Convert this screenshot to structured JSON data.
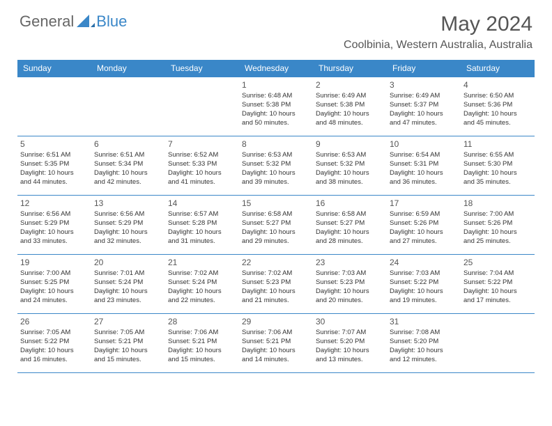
{
  "logo": {
    "text1": "General",
    "text2": "Blue"
  },
  "title": "May 2024",
  "location": "Coolbinia, Western Australia, Australia",
  "colors": {
    "header_bg": "#3a87c8",
    "header_text": "#ffffff",
    "border": "#3a87c8",
    "body_text": "#333333",
    "title_text": "#555555"
  },
  "weekdays": [
    "Sunday",
    "Monday",
    "Tuesday",
    "Wednesday",
    "Thursday",
    "Friday",
    "Saturday"
  ],
  "weeks": [
    [
      {
        "num": "",
        "sunrise": "",
        "sunset": "",
        "daylight1": "",
        "daylight2": ""
      },
      {
        "num": "",
        "sunrise": "",
        "sunset": "",
        "daylight1": "",
        "daylight2": ""
      },
      {
        "num": "",
        "sunrise": "",
        "sunset": "",
        "daylight1": "",
        "daylight2": ""
      },
      {
        "num": "1",
        "sunrise": "Sunrise: 6:48 AM",
        "sunset": "Sunset: 5:38 PM",
        "daylight1": "Daylight: 10 hours",
        "daylight2": "and 50 minutes."
      },
      {
        "num": "2",
        "sunrise": "Sunrise: 6:49 AM",
        "sunset": "Sunset: 5:38 PM",
        "daylight1": "Daylight: 10 hours",
        "daylight2": "and 48 minutes."
      },
      {
        "num": "3",
        "sunrise": "Sunrise: 6:49 AM",
        "sunset": "Sunset: 5:37 PM",
        "daylight1": "Daylight: 10 hours",
        "daylight2": "and 47 minutes."
      },
      {
        "num": "4",
        "sunrise": "Sunrise: 6:50 AM",
        "sunset": "Sunset: 5:36 PM",
        "daylight1": "Daylight: 10 hours",
        "daylight2": "and 45 minutes."
      }
    ],
    [
      {
        "num": "5",
        "sunrise": "Sunrise: 6:51 AM",
        "sunset": "Sunset: 5:35 PM",
        "daylight1": "Daylight: 10 hours",
        "daylight2": "and 44 minutes."
      },
      {
        "num": "6",
        "sunrise": "Sunrise: 6:51 AM",
        "sunset": "Sunset: 5:34 PM",
        "daylight1": "Daylight: 10 hours",
        "daylight2": "and 42 minutes."
      },
      {
        "num": "7",
        "sunrise": "Sunrise: 6:52 AM",
        "sunset": "Sunset: 5:33 PM",
        "daylight1": "Daylight: 10 hours",
        "daylight2": "and 41 minutes."
      },
      {
        "num": "8",
        "sunrise": "Sunrise: 6:53 AM",
        "sunset": "Sunset: 5:32 PM",
        "daylight1": "Daylight: 10 hours",
        "daylight2": "and 39 minutes."
      },
      {
        "num": "9",
        "sunrise": "Sunrise: 6:53 AM",
        "sunset": "Sunset: 5:32 PM",
        "daylight1": "Daylight: 10 hours",
        "daylight2": "and 38 minutes."
      },
      {
        "num": "10",
        "sunrise": "Sunrise: 6:54 AM",
        "sunset": "Sunset: 5:31 PM",
        "daylight1": "Daylight: 10 hours",
        "daylight2": "and 36 minutes."
      },
      {
        "num": "11",
        "sunrise": "Sunrise: 6:55 AM",
        "sunset": "Sunset: 5:30 PM",
        "daylight1": "Daylight: 10 hours",
        "daylight2": "and 35 minutes."
      }
    ],
    [
      {
        "num": "12",
        "sunrise": "Sunrise: 6:56 AM",
        "sunset": "Sunset: 5:29 PM",
        "daylight1": "Daylight: 10 hours",
        "daylight2": "and 33 minutes."
      },
      {
        "num": "13",
        "sunrise": "Sunrise: 6:56 AM",
        "sunset": "Sunset: 5:29 PM",
        "daylight1": "Daylight: 10 hours",
        "daylight2": "and 32 minutes."
      },
      {
        "num": "14",
        "sunrise": "Sunrise: 6:57 AM",
        "sunset": "Sunset: 5:28 PM",
        "daylight1": "Daylight: 10 hours",
        "daylight2": "and 31 minutes."
      },
      {
        "num": "15",
        "sunrise": "Sunrise: 6:58 AM",
        "sunset": "Sunset: 5:27 PM",
        "daylight1": "Daylight: 10 hours",
        "daylight2": "and 29 minutes."
      },
      {
        "num": "16",
        "sunrise": "Sunrise: 6:58 AM",
        "sunset": "Sunset: 5:27 PM",
        "daylight1": "Daylight: 10 hours",
        "daylight2": "and 28 minutes."
      },
      {
        "num": "17",
        "sunrise": "Sunrise: 6:59 AM",
        "sunset": "Sunset: 5:26 PM",
        "daylight1": "Daylight: 10 hours",
        "daylight2": "and 27 minutes."
      },
      {
        "num": "18",
        "sunrise": "Sunrise: 7:00 AM",
        "sunset": "Sunset: 5:26 PM",
        "daylight1": "Daylight: 10 hours",
        "daylight2": "and 25 minutes."
      }
    ],
    [
      {
        "num": "19",
        "sunrise": "Sunrise: 7:00 AM",
        "sunset": "Sunset: 5:25 PM",
        "daylight1": "Daylight: 10 hours",
        "daylight2": "and 24 minutes."
      },
      {
        "num": "20",
        "sunrise": "Sunrise: 7:01 AM",
        "sunset": "Sunset: 5:24 PM",
        "daylight1": "Daylight: 10 hours",
        "daylight2": "and 23 minutes."
      },
      {
        "num": "21",
        "sunrise": "Sunrise: 7:02 AM",
        "sunset": "Sunset: 5:24 PM",
        "daylight1": "Daylight: 10 hours",
        "daylight2": "and 22 minutes."
      },
      {
        "num": "22",
        "sunrise": "Sunrise: 7:02 AM",
        "sunset": "Sunset: 5:23 PM",
        "daylight1": "Daylight: 10 hours",
        "daylight2": "and 21 minutes."
      },
      {
        "num": "23",
        "sunrise": "Sunrise: 7:03 AM",
        "sunset": "Sunset: 5:23 PM",
        "daylight1": "Daylight: 10 hours",
        "daylight2": "and 20 minutes."
      },
      {
        "num": "24",
        "sunrise": "Sunrise: 7:03 AM",
        "sunset": "Sunset: 5:22 PM",
        "daylight1": "Daylight: 10 hours",
        "daylight2": "and 19 minutes."
      },
      {
        "num": "25",
        "sunrise": "Sunrise: 7:04 AM",
        "sunset": "Sunset: 5:22 PM",
        "daylight1": "Daylight: 10 hours",
        "daylight2": "and 17 minutes."
      }
    ],
    [
      {
        "num": "26",
        "sunrise": "Sunrise: 7:05 AM",
        "sunset": "Sunset: 5:22 PM",
        "daylight1": "Daylight: 10 hours",
        "daylight2": "and 16 minutes."
      },
      {
        "num": "27",
        "sunrise": "Sunrise: 7:05 AM",
        "sunset": "Sunset: 5:21 PM",
        "daylight1": "Daylight: 10 hours",
        "daylight2": "and 15 minutes."
      },
      {
        "num": "28",
        "sunrise": "Sunrise: 7:06 AM",
        "sunset": "Sunset: 5:21 PM",
        "daylight1": "Daylight: 10 hours",
        "daylight2": "and 15 minutes."
      },
      {
        "num": "29",
        "sunrise": "Sunrise: 7:06 AM",
        "sunset": "Sunset: 5:21 PM",
        "daylight1": "Daylight: 10 hours",
        "daylight2": "and 14 minutes."
      },
      {
        "num": "30",
        "sunrise": "Sunrise: 7:07 AM",
        "sunset": "Sunset: 5:20 PM",
        "daylight1": "Daylight: 10 hours",
        "daylight2": "and 13 minutes."
      },
      {
        "num": "31",
        "sunrise": "Sunrise: 7:08 AM",
        "sunset": "Sunset: 5:20 PM",
        "daylight1": "Daylight: 10 hours",
        "daylight2": "and 12 minutes."
      },
      {
        "num": "",
        "sunrise": "",
        "sunset": "",
        "daylight1": "",
        "daylight2": ""
      }
    ]
  ]
}
